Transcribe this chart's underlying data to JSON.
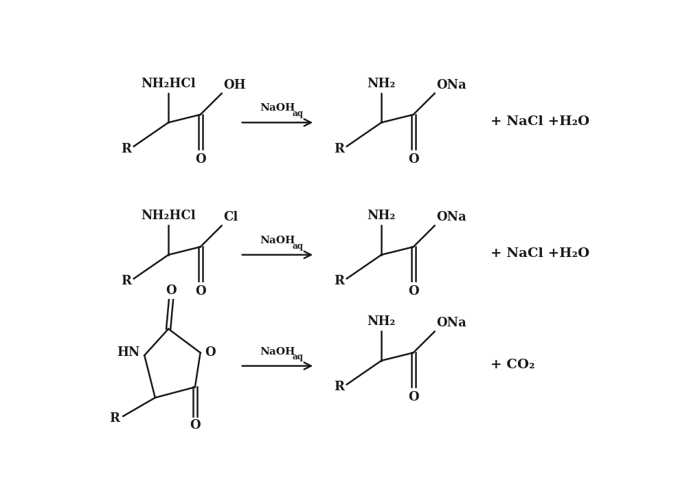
{
  "bg_color": "#ffffff",
  "line_color": "#1a1a1a",
  "text_color": "#1a1a1a",
  "figsize": [
    10.0,
    7.16
  ],
  "dpi": 100,
  "rows": [
    {
      "reactant_label_top": "NH₂HCl",
      "reactant_label_oh": "OH",
      "reactant_label_o": "O",
      "reactant_label_r": "R",
      "arrow_label": "NaOH",
      "arrow_sub": "aq",
      "product_label_nh2": "NH₂",
      "product_label_ona": "ONa",
      "product_label_o": "O",
      "product_label_r": "R",
      "byproduct": "+ NaCl +H₂O"
    },
    {
      "reactant_label_top": "NH₂HCl",
      "reactant_label_oh": "Cl",
      "reactant_label_o": "O",
      "reactant_label_r": "R",
      "arrow_label": "NaOH",
      "arrow_sub": "aq",
      "product_label_nh2": "NH₂",
      "product_label_ona": "ONa",
      "product_label_o": "O",
      "product_label_r": "R",
      "byproduct": "+ NaCl +H₂O"
    },
    {
      "ring_label_hn": "HN",
      "ring_label_o_right": "O",
      "ring_label_o_top": "O",
      "ring_label_o_bottom": "O",
      "ring_label_r": "R",
      "arrow_label": "NaOH",
      "arrow_sub": "aq",
      "product_label_nh2": "NH₂",
      "product_label_ona": "ONa",
      "product_label_o": "O",
      "product_label_r": "R",
      "byproduct": "+ CO₂"
    }
  ]
}
